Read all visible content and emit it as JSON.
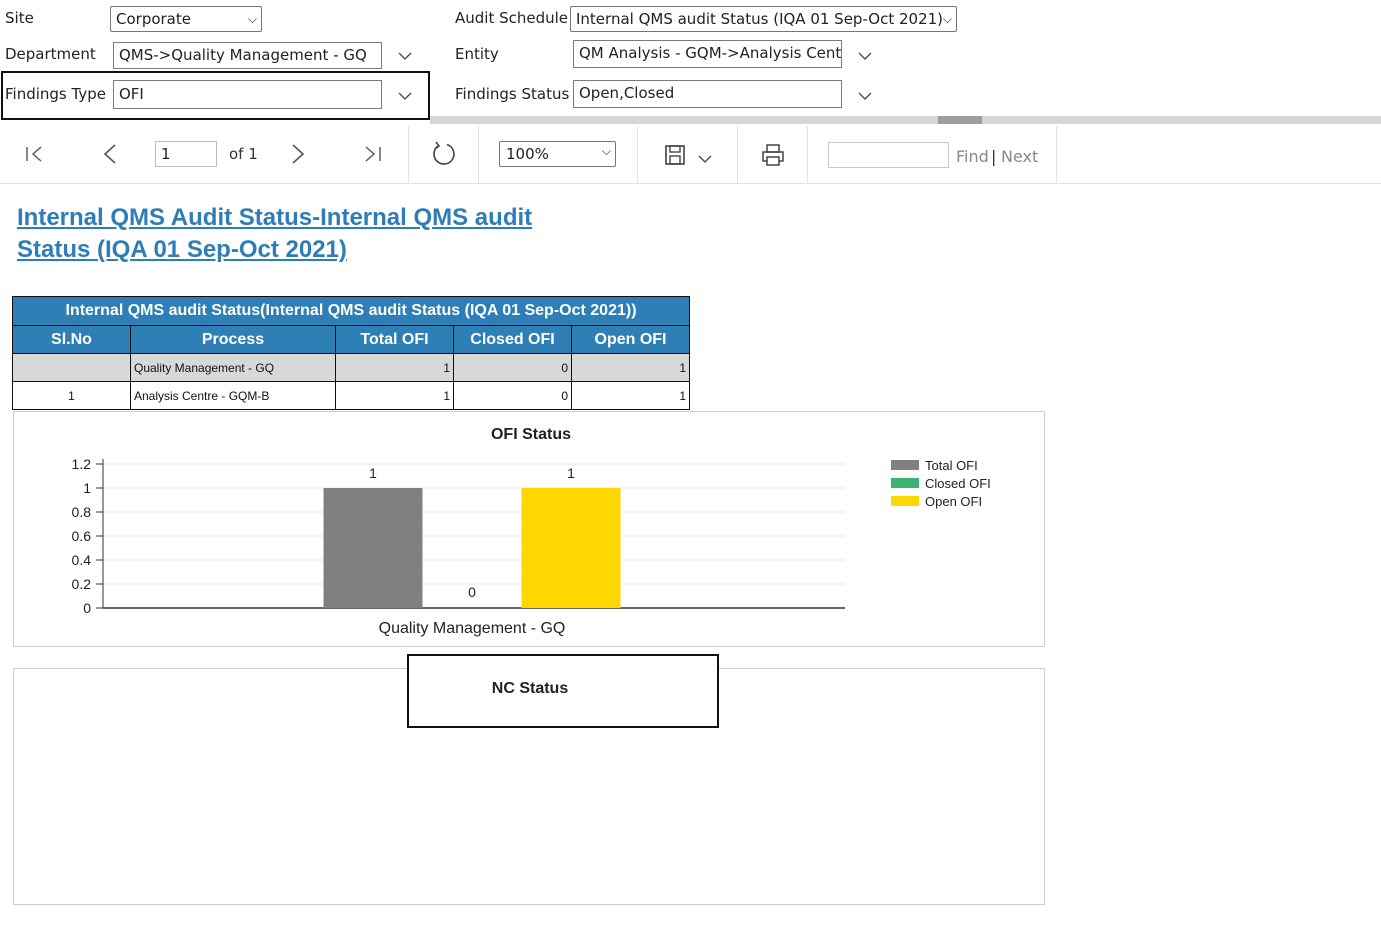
{
  "params": {
    "site_label": "Site",
    "site_value": "Corporate",
    "department_label": "Department",
    "department_value": "QMS->Quality Management - GQ",
    "findings_type_label": "Findings Type",
    "findings_type_value": "OFI",
    "audit_schedule_label": "Audit Schedule",
    "audit_schedule_value": "Internal QMS audit Status (IQA 01 Sep-Oct 2021)",
    "entity_label": "Entity",
    "entity_value": "QM Analysis - GQM->Analysis Centre - GQM-B",
    "findings_status_label": "Findings Status",
    "findings_status_value": "Open,Closed"
  },
  "toolbar": {
    "page_value": "1",
    "page_of": "of 1",
    "zoom_value": "100%",
    "find_placeholder": "",
    "find_label": "Find",
    "find_sep": "|",
    "next_label": "Next"
  },
  "report": {
    "title": "Internal QMS Audit Status-Internal QMS audit Status (IQA 01 Sep-Oct 2021)",
    "table_title": "Internal QMS audit Status(Internal QMS audit Status (IQA 01 Sep-Oct 2021))",
    "headers": [
      "Sl.No",
      "Process",
      "Total OFI",
      "Closed OFI",
      "Open OFI"
    ],
    "rows": [
      {
        "slno": "",
        "process": "Quality Management - GQ",
        "total": "1",
        "closed": "0",
        "open": "1"
      },
      {
        "slno": "1",
        "process": "Analysis Centre - GQM-B",
        "total": "1",
        "closed": "0",
        "open": "1"
      }
    ]
  },
  "colors": {
    "accent": "#2f7fb7",
    "total_ofi": "#808080",
    "closed_ofi": "#3cb371",
    "open_ofi": "#ffd700"
  },
  "icons": [
    "first-page-icon",
    "prev-page-icon",
    "next-page-icon",
    "last-page-icon",
    "refresh-icon",
    "save-icon",
    "print-icon",
    "chevron-down-icon"
  ],
  "chart_data": [
    {
      "type": "bar",
      "title": "OFI Status",
      "categories": [
        "Quality Management - GQ"
      ],
      "series": [
        {
          "name": "Total OFI",
          "values": [
            1
          ]
        },
        {
          "name": "Closed OFI",
          "values": [
            0
          ]
        },
        {
          "name": "Open OFI",
          "values": [
            1
          ]
        }
      ],
      "ylim": [
        0,
        1.2
      ],
      "yticks": [
        "0",
        "0.2",
        "0.4",
        "0.6",
        "0.8",
        "1",
        "1.2"
      ],
      "grid": true,
      "legend": "right"
    },
    {
      "type": "bar",
      "title": "NC Status",
      "categories": [],
      "series": []
    }
  ]
}
